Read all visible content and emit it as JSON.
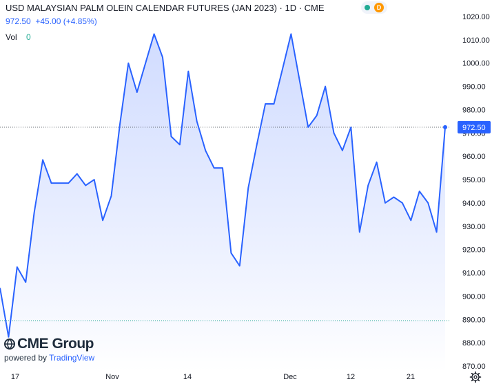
{
  "legend": {
    "title": "USD MALAYSIAN PALM OLEIN CALENDAR FUTURES (JAN 2023) · 1D · CME",
    "price_change": "972.50  +45.00 (+4.85%)",
    "vol_label": "Vol",
    "vol_value": "0",
    "status_badge": "D"
  },
  "price_badge": "972.50",
  "branding": {
    "logo": "CME Group",
    "powered_by": "powered by",
    "tradingview": "TradingView"
  },
  "icons": {
    "settings": "gear-icon",
    "logo_mark": "cme-globe-icon",
    "status_dot": "market-status-dot-icon"
  },
  "colors": {
    "line": "#2962ff",
    "area_top": "#c9d6ff",
    "area_bottom": "#ffffff",
    "reference_line": "#26a69a",
    "crosshair": "#131722",
    "accent": "#2962ff",
    "positive": "#22ab94",
    "badge": "#ff9800"
  },
  "chart_data": {
    "type": "area",
    "title": "USD MALAYSIAN PALM OLEIN CALENDAR FUTURES (JAN 2023) · 1D · CME",
    "x_tick_labels": [
      "17",
      "Nov",
      "14",
      "Dec",
      "12",
      "21"
    ],
    "y_tick_labels": [
      "1020.00",
      "1010.00",
      "1000.00",
      "990.00",
      "980.00",
      "970.00",
      "960.00",
      "950.00",
      "940.00",
      "930.00",
      "920.00",
      "910.00",
      "900.00",
      "890.00",
      "880.00",
      "870.00"
    ],
    "ylim": [
      870,
      1020
    ],
    "reference_line": 889.5,
    "last_value": 972.5,
    "grid": false,
    "series": [
      {
        "values": [
          903.5,
          882.5,
          912.5,
          906,
          936,
          958.5,
          948.5,
          948.5,
          948.5,
          952.5,
          947.5,
          950,
          932.5,
          943,
          973.5,
          1000,
          987.5,
          1000,
          1012.5,
          1002.5,
          968.5,
          965,
          996.5,
          975,
          962.5,
          955,
          955,
          918.5,
          913,
          946.5,
          965,
          982.5,
          982.5,
          997.5,
          1012.5,
          992.5,
          972.5,
          977.5,
          990,
          970,
          962.5,
          972.5,
          927.5,
          947.5,
          957.5,
          940,
          942.5,
          940,
          932.5,
          945,
          940,
          927.5,
          972.5
        ]
      }
    ]
  }
}
